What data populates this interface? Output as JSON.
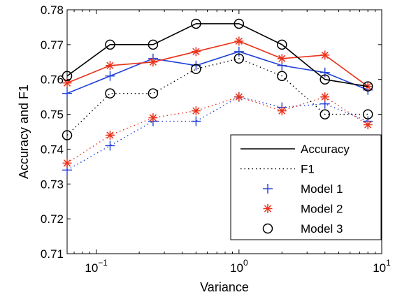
{
  "chart_data": {
    "type": "line",
    "xlabel": "Variance",
    "ylabel": "Accuracy and F1",
    "xscale": "log",
    "xlim": [
      0.0625,
      10
    ],
    "ylim": [
      0.71,
      0.78
    ],
    "x_ticks": [
      {
        "value": 0.1,
        "base": "10",
        "exp": "−1"
      },
      {
        "value": 1,
        "base": "10",
        "exp": "0"
      },
      {
        "value": 10,
        "base": "10",
        "exp": "1"
      }
    ],
    "y_ticks": [
      "0.71",
      "0.72",
      "0.73",
      "0.74",
      "0.75",
      "0.76",
      "0.77",
      "0.78"
    ],
    "grid": false,
    "legend_position": "bottom-right",
    "x": [
      0.0625,
      0.125,
      0.25,
      0.5,
      1,
      2,
      4,
      8
    ],
    "series": [
      {
        "model": "Model 1",
        "metric": "Accuracy",
        "color": "#1f3fd6",
        "marker": "plus",
        "style": "solid",
        "values": [
          0.756,
          0.761,
          0.766,
          0.764,
          0.768,
          0.764,
          0.762,
          0.757
        ]
      },
      {
        "model": "Model 2",
        "metric": "Accuracy",
        "color": "#e8321a",
        "marker": "asterisk",
        "style": "solid",
        "values": [
          0.759,
          0.764,
          0.765,
          0.768,
          0.771,
          0.766,
          0.767,
          0.758
        ]
      },
      {
        "model": "Model 3",
        "metric": "Accuracy",
        "color": "#000000",
        "marker": "circle",
        "style": "solid",
        "values": [
          0.761,
          0.77,
          0.77,
          0.776,
          0.776,
          0.77,
          0.76,
          0.758
        ]
      },
      {
        "model": "Model 1",
        "metric": "F1",
        "color": "#1f3fd6",
        "marker": "plus",
        "style": "dotted",
        "values": [
          0.734,
          0.741,
          0.748,
          0.748,
          0.755,
          0.752,
          0.753,
          0.748
        ]
      },
      {
        "model": "Model 2",
        "metric": "F1",
        "color": "#e8321a",
        "marker": "asterisk",
        "style": "dotted",
        "values": [
          0.736,
          0.744,
          0.749,
          0.751,
          0.755,
          0.751,
          0.755,
          0.747
        ]
      },
      {
        "model": "Model 3",
        "metric": "F1",
        "color": "#000000",
        "marker": "circle",
        "style": "dotted",
        "values": [
          0.744,
          0.756,
          0.756,
          0.763,
          0.766,
          0.761,
          0.75,
          0.75
        ]
      }
    ],
    "legend": [
      {
        "label": "Accuracy",
        "kind": "line-solid"
      },
      {
        "label": "F1",
        "kind": "line-dotted"
      },
      {
        "label": "Model 1",
        "kind": "marker",
        "marker": "plus",
        "color": "#1f3fd6"
      },
      {
        "label": "Model 2",
        "kind": "marker",
        "marker": "asterisk",
        "color": "#e8321a"
      },
      {
        "label": "Model 3",
        "kind": "marker",
        "marker": "circle",
        "color": "#000000"
      }
    ]
  }
}
